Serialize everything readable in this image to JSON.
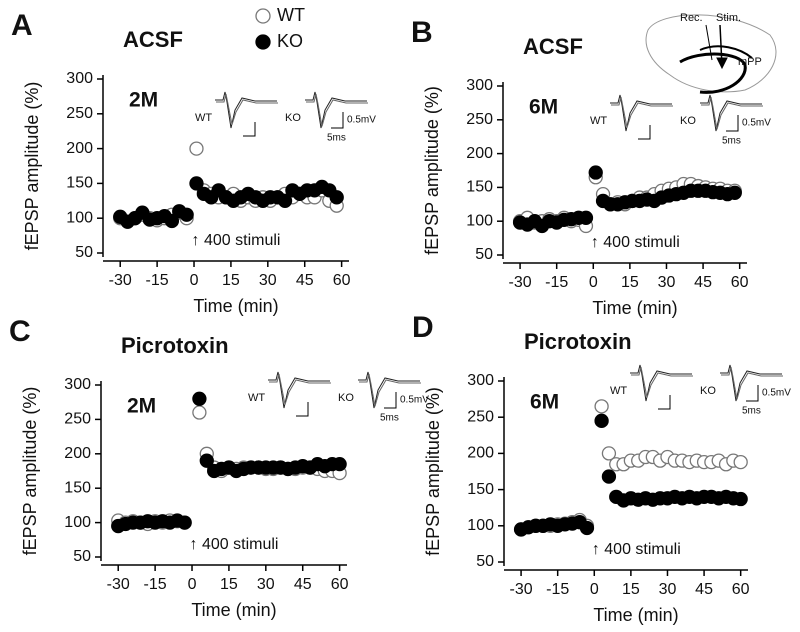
{
  "chart_data": [
    {
      "type": "scatter",
      "panel": "A",
      "title": "ACSF",
      "age": "2M",
      "x_label": "Time (min)",
      "y_label": "fEPSP amplitude (%)",
      "annotation": "↑ 400 stimuli",
      "inset_labels": [
        "WT",
        "KO",
        "0.5mV",
        "5ms"
      ],
      "legend": true,
      "xlim": [
        -37,
        63
      ],
      "ylim": [
        50,
        300
      ],
      "xticks": [
        -30,
        -15,
        0,
        15,
        30,
        45,
        60
      ],
      "yticks": [
        50,
        100,
        150,
        200,
        250,
        300
      ],
      "x": [
        -30,
        -27,
        -24,
        -21,
        -18,
        -15,
        -12,
        -9,
        -6,
        -3,
        1,
        4,
        7,
        10,
        13,
        16,
        19,
        22,
        25,
        28,
        31,
        34,
        37,
        40,
        43,
        46,
        49,
        52,
        55,
        58
      ],
      "series": [
        {
          "name": "WT",
          "color": "#ffffff",
          "values": [
            100,
            95,
            100,
            105,
            100,
            97,
            100,
            105,
            108,
            100,
            200,
            140,
            135,
            130,
            130,
            135,
            125,
            130,
            125,
            130,
            125,
            130,
            135,
            130,
            135,
            130,
            130,
            140,
            125,
            118
          ]
        },
        {
          "name": "KO",
          "color": "#000000",
          "values": [
            102,
            95,
            100,
            108,
            98,
            100,
            103,
            96,
            110,
            105,
            150,
            135,
            130,
            140,
            130,
            125,
            130,
            135,
            130,
            125,
            130,
            130,
            125,
            140,
            135,
            140,
            140,
            145,
            140,
            130
          ]
        }
      ]
    },
    {
      "type": "scatter",
      "panel": "B",
      "title": "ACSF",
      "age": "6M",
      "x_label": "Time (min)",
      "y_label": "fEPSP amplitude (%)",
      "annotation": "↑ 400 stimuli",
      "inset_labels": [
        "WT",
        "KO",
        "0.5mV",
        "5ms"
      ],
      "schematic": [
        "Rec.",
        "Stim.",
        "mPP"
      ],
      "xlim": [
        -37,
        63
      ],
      "ylim": [
        50,
        300
      ],
      "xticks": [
        -30,
        -15,
        0,
        15,
        30,
        45,
        60
      ],
      "yticks": [
        50,
        100,
        150,
        200,
        250,
        300
      ],
      "x": [
        -30,
        -27,
        -24,
        -21,
        -18,
        -15,
        -12,
        -9,
        -6,
        -3,
        1,
        4,
        7,
        10,
        13,
        16,
        19,
        22,
        25,
        28,
        31,
        34,
        37,
        40,
        43,
        46,
        49,
        52,
        55,
        58
      ],
      "series": [
        {
          "name": "WT",
          "color": "#ffffff",
          "values": [
            100,
            105,
            98,
            100,
            103,
            100,
            105,
            100,
            102,
            93,
            165,
            140,
            125,
            128,
            125,
            130,
            135,
            135,
            140,
            145,
            148,
            150,
            155,
            155,
            152,
            150,
            148,
            148,
            145,
            145
          ]
        },
        {
          "name": "KO",
          "color": "#000000",
          "values": [
            98,
            95,
            100,
            93,
            100,
            98,
            102,
            103,
            105,
            105,
            172,
            130,
            125,
            125,
            128,
            130,
            130,
            132,
            130,
            135,
            138,
            140,
            142,
            145,
            145,
            145,
            143,
            142,
            140,
            142
          ]
        }
      ]
    },
    {
      "type": "scatter",
      "panel": "C",
      "title": "Picrotoxin",
      "age": "2M",
      "x_label": "Time (min)",
      "y_label": "fEPSP amplitude (%)",
      "annotation": "↑ 400 stimuli",
      "inset_labels": [
        "WT",
        "KO",
        "0.5mV",
        "5ms"
      ],
      "xlim": [
        -37,
        63
      ],
      "ylim": [
        50,
        300
      ],
      "xticks": [
        -30,
        -15,
        0,
        15,
        30,
        45,
        60
      ],
      "yticks": [
        50,
        100,
        150,
        200,
        250,
        300
      ],
      "x": [
        -30,
        -27,
        -24,
        -21,
        -18,
        -15,
        -12,
        -9,
        -6,
        -3,
        3,
        6,
        9,
        12,
        15,
        18,
        21,
        24,
        27,
        30,
        33,
        36,
        39,
        42,
        45,
        48,
        51,
        54,
        57,
        60
      ],
      "series": [
        {
          "name": "WT",
          "color": "#ffffff",
          "values": [
            103,
            100,
            102,
            100,
            98,
            102,
            100,
            103,
            102,
            100,
            260,
            200,
            180,
            175,
            180,
            178,
            180,
            180,
            180,
            178,
            178,
            180,
            178,
            178,
            180,
            180,
            178,
            175,
            175,
            172
          ]
        },
        {
          "name": "KO",
          "color": "#000000",
          "values": [
            95,
            98,
            100,
            100,
            102,
            100,
            102,
            100,
            103,
            100,
            280,
            190,
            175,
            178,
            180,
            175,
            178,
            180,
            180,
            180,
            180,
            180,
            178,
            180,
            182,
            180,
            185,
            182,
            185,
            185
          ]
        }
      ]
    },
    {
      "type": "scatter",
      "panel": "D",
      "title": "Picrotoxin",
      "age": "6M",
      "x_label": "Time (min)",
      "y_label": "fEPSP amplitude (%)",
      "annotation": "↑ 400 stimuli",
      "inset_labels": [
        "WT",
        "KO",
        "0.5mV",
        "5ms"
      ],
      "xlim": [
        -37,
        63
      ],
      "ylim": [
        50,
        300
      ],
      "xticks": [
        -30,
        -15,
        0,
        15,
        30,
        45,
        60
      ],
      "yticks": [
        50,
        100,
        150,
        200,
        250,
        300
      ],
      "x": [
        -30,
        -27,
        -24,
        -21,
        -18,
        -15,
        -12,
        -9,
        -6,
        -3,
        3,
        6,
        9,
        12,
        15,
        18,
        21,
        24,
        27,
        30,
        33,
        36,
        39,
        42,
        45,
        48,
        51,
        54,
        57,
        60
      ],
      "series": [
        {
          "name": "WT",
          "color": "#ffffff",
          "values": [
            95,
            98,
            100,
            100,
            100,
            102,
            103,
            105,
            108,
            100,
            265,
            200,
            185,
            185,
            190,
            190,
            195,
            195,
            190,
            195,
            190,
            190,
            188,
            190,
            188,
            188,
            190,
            185,
            190,
            188
          ]
        },
        {
          "name": "KO",
          "color": "#000000",
          "values": [
            95,
            98,
            100,
            100,
            102,
            100,
            102,
            103,
            105,
            97,
            245,
            168,
            140,
            135,
            138,
            136,
            138,
            136,
            138,
            138,
            140,
            138,
            140,
            138,
            140,
            140,
            138,
            140,
            138,
            137
          ]
        }
      ]
    }
  ]
}
